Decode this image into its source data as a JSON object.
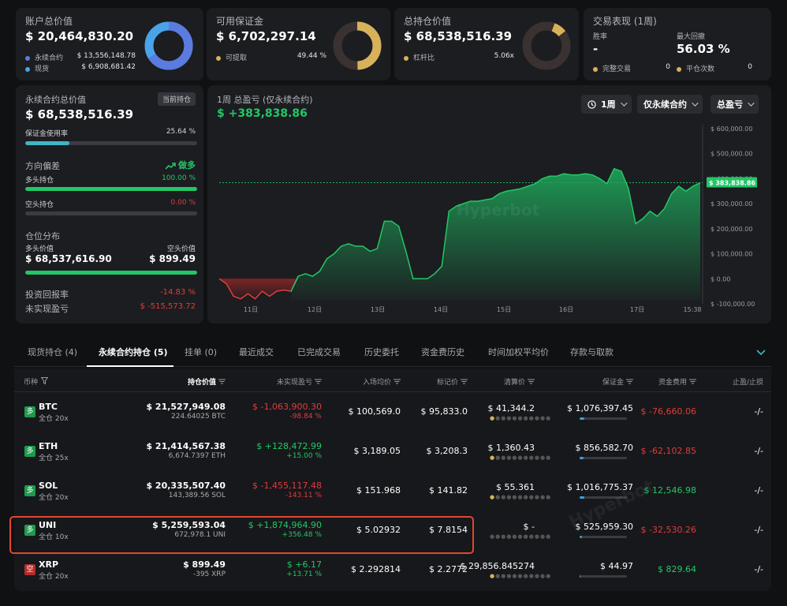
{
  "cards": {
    "account": {
      "title": "账户总价值",
      "value": "$ 20,464,830.20",
      "rows": [
        {
          "label": "永续合约",
          "value": "$ 13,556,148.78"
        },
        {
          "label": "现货",
          "value": "$ 6,908,681.42"
        }
      ]
    },
    "margin": {
      "title": "可用保证金",
      "value": "$ 6,702,297.14",
      "rows": [
        {
          "label": "可提取",
          "value": "49.44 %"
        }
      ]
    },
    "position": {
      "title": "总持仓价值",
      "value": "$ 68,538,516.39",
      "rows": [
        {
          "label": "杠杆比",
          "value": "5.06x"
        }
      ]
    },
    "perf": {
      "title": "交易表现 (1周)",
      "win_label": "胜率",
      "win_value": "-",
      "dd_label": "最大回撤",
      "dd_value": "56.03 %",
      "completed_label": "完整交易",
      "completed_value": "0",
      "close_label": "平仓次数",
      "close_value": "0"
    }
  },
  "colors": {
    "blue": "#5b7be0",
    "light_blue": "#4aa3e8",
    "gold": "#d8b25a",
    "green": "#23c767",
    "red": "#e23b3b"
  },
  "left": {
    "title": "永续合约总价值",
    "badge": "当前持仓",
    "value": "$ 68,538,516.39",
    "margin_label": "保证金使用率",
    "margin_value": "25.64 %",
    "margin_pct": 25.64,
    "bias_label": "方向偏差",
    "bias_value": "做多",
    "long_label": "多头持仓",
    "long_value": "100.00 %",
    "long_pct": 100,
    "short_label": "空头持仓",
    "short_value": "0.00 %",
    "dist_label": "仓位分布",
    "long_val_label": "多头价值",
    "short_val_label": "空头价值",
    "long_val": "$ 68,537,616.90",
    "short_val": "$ 899.49",
    "roi_label": "投资回报率",
    "roi_value": "-14.83 %",
    "upnl_label": "未实现盈亏",
    "upnl_value": "$ -515,573.72"
  },
  "chart": {
    "title": "1周 总盈亏 (仅永续合约)",
    "value": "$ +383,838.86",
    "filters": {
      "period": "1周",
      "scope": "仅永续合约",
      "metric": "总盈亏"
    },
    "current_label": "$ 383,838.86",
    "watermark": "Hyperbot"
  },
  "chart_data": {
    "type": "area",
    "x_ticks": [
      "11日",
      "12日",
      "13日",
      "14日",
      "15日",
      "16日",
      "17日",
      "15:38"
    ],
    "y_ticks": [
      "$ 600,000.00",
      "$ 500,000.00",
      "$ 400,000.00",
      "$ 300,000.00",
      "$ 200,000.00",
      "$ 100,000.00",
      "$ 0.00",
      "$ -100,000.00"
    ],
    "ylim": [
      -100000,
      600000
    ],
    "current": 383838.86,
    "values": [
      0,
      -20000,
      -70000,
      -80000,
      -60000,
      -80000,
      -50000,
      -70000,
      -50000,
      -45000,
      -50000,
      10000,
      20000,
      10000,
      30000,
      80000,
      100000,
      130000,
      140000,
      130000,
      130000,
      110000,
      120000,
      230000,
      230000,
      210000,
      110000,
      0,
      0,
      0,
      20000,
      50000,
      270000,
      290000,
      300000,
      310000,
      310000,
      315000,
      320000,
      340000,
      350000,
      355000,
      360000,
      370000,
      380000,
      400000,
      410000,
      410000,
      420000,
      415000,
      415000,
      420000,
      415000,
      400000,
      380000,
      440000,
      430000,
      360000,
      220000,
      240000,
      270000,
      250000,
      280000,
      340000,
      370000,
      350000,
      370000,
      383838
    ]
  },
  "tabs": [
    "现货持仓 (4)",
    "永续合约持仓 (5)",
    "挂单 (0)",
    "最近成交",
    "已完成交易",
    "历史委托",
    "资金费历史",
    "时间加权平均价",
    "存款与取款"
  ],
  "table": {
    "headers": [
      "币种",
      "持仓价值",
      "未实现盈亏",
      "入场均价",
      "标记价",
      "清算价",
      "保证金",
      "资金费用",
      "止盈/止损"
    ],
    "rows": [
      {
        "side": "多",
        "coin": "BTC",
        "lev": "全仓 20x",
        "pos": "$ 21,527,949.08",
        "size": "224.64025 BTC",
        "pnl": "$ -1,063,900.30",
        "pnl_pct": "-98.84 %",
        "pnl_color": "red",
        "entry": "$ 100,569.0",
        "mark": "$ 95,833.0",
        "liq": "$ 41,344.2",
        "margin": "$ 1,076,397.45",
        "margin_pct": 10,
        "funding": "$ -76,660.06",
        "funding_color": "red",
        "tpsl": "-/-"
      },
      {
        "side": "多",
        "coin": "ETH",
        "lev": "全仓 25x",
        "pos": "$ 21,414,567.38",
        "size": "6,674.7397 ETH",
        "pnl": "$ +128,472.99",
        "pnl_pct": "+15.00 %",
        "pnl_color": "green",
        "entry": "$ 3,189.05",
        "mark": "$ 3,208.3",
        "liq": "$ 1,360.43",
        "margin": "$ 856,582.70",
        "margin_pct": 8,
        "funding": "$ -62,102.85",
        "funding_color": "red",
        "tpsl": "-/-"
      },
      {
        "side": "多",
        "coin": "SOL",
        "lev": "全仓 20x",
        "pos": "$ 20,335,507.40",
        "size": "143,389.56 SOL",
        "pnl": "$ -1,455,117.48",
        "pnl_pct": "-143.11 %",
        "pnl_color": "red",
        "entry": "$ 151.968",
        "mark": "$ 141.82",
        "liq": "$ 55.361",
        "margin": "$ 1,016,775.37",
        "margin_pct": 10,
        "funding": "$ 12,546.98",
        "funding_color": "green",
        "tpsl": "-/-"
      },
      {
        "side": "多",
        "coin": "UNI",
        "lev": "全仓 10x",
        "pos": "$ 5,259,593.04",
        "size": "672,978.1 UNI",
        "pnl": "$ +1,874,964.90",
        "pnl_pct": "+356.48 %",
        "pnl_color": "green",
        "entry": "$ 5.02932",
        "mark": "$ 7.8154",
        "liq": "$ -",
        "margin": "$ 525,959.30",
        "margin_pct": 5,
        "funding": "$ -32,530.26",
        "funding_color": "red",
        "tpsl": "-/-"
      },
      {
        "side": "空",
        "coin": "XRP",
        "lev": "全仓 20x",
        "pos": "$ 899.49",
        "size": "-395 XRP",
        "pnl": "$ +6.17",
        "pnl_pct": "+13.71 %",
        "pnl_color": "green",
        "entry": "$ 2.292814",
        "mark": "$ 2.2772",
        "liq": "$ 29,856.845274",
        "margin": "$ 44.97",
        "margin_pct": 1,
        "funding": "$ 829.64",
        "funding_color": "green",
        "tpsl": "-/-"
      }
    ]
  },
  "table_watermark": "Hyperbot"
}
